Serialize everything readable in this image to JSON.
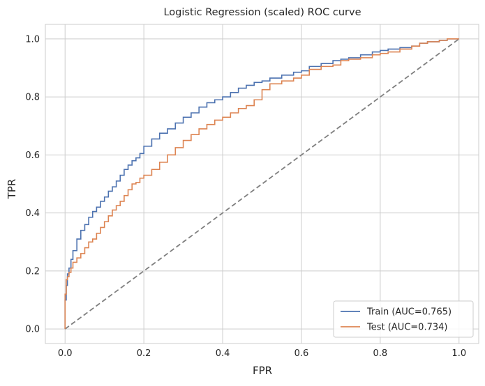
{
  "chart_data": {
    "type": "line",
    "title": "Logistic Regression (scaled) ROC curve",
    "xlabel": "FPR",
    "ylabel": "TPR",
    "xlim": [
      -0.05,
      1.05
    ],
    "ylim": [
      -0.05,
      1.05
    ],
    "xticks": [
      0.0,
      0.2,
      0.4,
      0.6,
      0.8,
      1.0
    ],
    "yticks": [
      0.0,
      0.2,
      0.4,
      0.6,
      0.8,
      1.0
    ],
    "xtick_labels": [
      "0.0",
      "0.2",
      "0.4",
      "0.6",
      "0.8",
      "1.0"
    ],
    "ytick_labels": [
      "0.0",
      "0.2",
      "0.4",
      "0.6",
      "0.8",
      "1.0"
    ],
    "grid": true,
    "legend_position": "lower-right",
    "series": [
      {
        "name": "Train (AUC=0.765)",
        "color": "#4c72b0",
        "style": "solid",
        "x": [
          0.0,
          0.0,
          0.003,
          0.006,
          0.01,
          0.015,
          0.02,
          0.03,
          0.04,
          0.05,
          0.06,
          0.07,
          0.08,
          0.09,
          0.1,
          0.11,
          0.12,
          0.13,
          0.14,
          0.15,
          0.16,
          0.17,
          0.18,
          0.19,
          0.2,
          0.22,
          0.24,
          0.26,
          0.28,
          0.3,
          0.32,
          0.34,
          0.36,
          0.38,
          0.4,
          0.42,
          0.44,
          0.46,
          0.48,
          0.5,
          0.52,
          0.55,
          0.58,
          0.6,
          0.62,
          0.65,
          0.68,
          0.7,
          0.72,
          0.75,
          0.78,
          0.8,
          0.82,
          0.85,
          0.88,
          0.9,
          0.92,
          0.95,
          0.97,
          1.0
        ],
        "y": [
          0.0,
          0.06,
          0.1,
          0.15,
          0.19,
          0.21,
          0.24,
          0.27,
          0.31,
          0.34,
          0.36,
          0.385,
          0.405,
          0.42,
          0.44,
          0.455,
          0.475,
          0.49,
          0.51,
          0.53,
          0.55,
          0.565,
          0.58,
          0.59,
          0.605,
          0.63,
          0.655,
          0.675,
          0.69,
          0.71,
          0.73,
          0.745,
          0.765,
          0.78,
          0.79,
          0.8,
          0.815,
          0.83,
          0.84,
          0.85,
          0.855,
          0.865,
          0.875,
          0.885,
          0.89,
          0.905,
          0.915,
          0.925,
          0.93,
          0.935,
          0.945,
          0.955,
          0.96,
          0.965,
          0.97,
          0.975,
          0.985,
          0.99,
          0.995,
          1.0
        ]
      },
      {
        "name": "Test (AUC=0.734)",
        "color": "#dd8452",
        "style": "solid",
        "x": [
          0.0,
          0.0,
          0.003,
          0.006,
          0.01,
          0.015,
          0.02,
          0.03,
          0.04,
          0.05,
          0.06,
          0.07,
          0.08,
          0.09,
          0.1,
          0.11,
          0.12,
          0.13,
          0.14,
          0.15,
          0.16,
          0.17,
          0.18,
          0.19,
          0.2,
          0.22,
          0.24,
          0.26,
          0.28,
          0.3,
          0.32,
          0.34,
          0.36,
          0.38,
          0.4,
          0.42,
          0.44,
          0.46,
          0.48,
          0.5,
          0.52,
          0.55,
          0.58,
          0.6,
          0.62,
          0.65,
          0.68,
          0.7,
          0.72,
          0.75,
          0.78,
          0.8,
          0.82,
          0.85,
          0.88,
          0.9,
          0.92,
          0.95,
          0.97,
          1.0
        ],
        "y": [
          0.0,
          0.06,
          0.12,
          0.17,
          0.18,
          0.195,
          0.21,
          0.23,
          0.245,
          0.26,
          0.28,
          0.3,
          0.31,
          0.33,
          0.35,
          0.37,
          0.39,
          0.41,
          0.425,
          0.44,
          0.46,
          0.48,
          0.5,
          0.505,
          0.52,
          0.53,
          0.55,
          0.575,
          0.6,
          0.625,
          0.65,
          0.67,
          0.69,
          0.705,
          0.72,
          0.73,
          0.745,
          0.76,
          0.77,
          0.79,
          0.825,
          0.845,
          0.855,
          0.865,
          0.875,
          0.895,
          0.905,
          0.91,
          0.925,
          0.93,
          0.935,
          0.945,
          0.95,
          0.955,
          0.965,
          0.975,
          0.985,
          0.99,
          0.995,
          1.0
        ]
      },
      {
        "name": "",
        "color": "#7f7f7f",
        "style": "dashed",
        "x": [
          0.0,
          1.0
        ],
        "y": [
          0.0,
          1.0
        ]
      }
    ]
  }
}
